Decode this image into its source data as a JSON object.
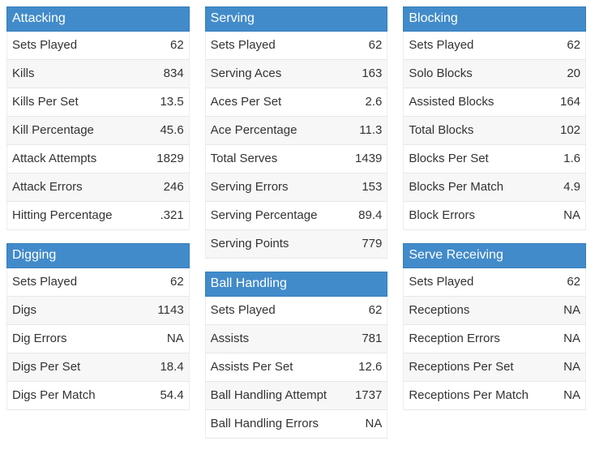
{
  "theme": {
    "header_bg": "#428bca",
    "header_border": "#357ebd",
    "header_text": "#ffffff",
    "row_stripe_bg": "#f7f7f7",
    "row_border": "#e7e7e7",
    "body_bg": "#ffffff",
    "text_color": "#333333"
  },
  "tables": {
    "attacking": {
      "title": "Attacking",
      "rows": [
        [
          "Sets Played",
          "62"
        ],
        [
          "Kills",
          "834"
        ],
        [
          "Kills Per Set",
          "13.5"
        ],
        [
          "Kill Percentage",
          "45.6"
        ],
        [
          "Attack Attempts",
          "1829"
        ],
        [
          "Attack Errors",
          "246"
        ],
        [
          "Hitting Percentage",
          ".321"
        ]
      ]
    },
    "serving": {
      "title": "Serving",
      "rows": [
        [
          "Sets Played",
          "62"
        ],
        [
          "Serving Aces",
          "163"
        ],
        [
          "Aces Per Set",
          "2.6"
        ],
        [
          "Ace Percentage",
          "11.3"
        ],
        [
          "Total Serves",
          "1439"
        ],
        [
          "Serving Errors",
          "153"
        ],
        [
          "Serving Percentage",
          "89.4"
        ],
        [
          "Serving Points",
          "779"
        ]
      ]
    },
    "blocking": {
      "title": "Blocking",
      "rows": [
        [
          "Sets Played",
          "62"
        ],
        [
          "Solo Blocks",
          "20"
        ],
        [
          "Assisted Blocks",
          "164"
        ],
        [
          "Total Blocks",
          "102"
        ],
        [
          "Blocks Per Set",
          "1.6"
        ],
        [
          "Blocks Per Match",
          "4.9"
        ],
        [
          "Block Errors",
          "NA"
        ]
      ]
    },
    "digging": {
      "title": "Digging",
      "rows": [
        [
          "Sets Played",
          "62"
        ],
        [
          "Digs",
          "1143"
        ],
        [
          "Dig Errors",
          "NA"
        ],
        [
          "Digs Per Set",
          "18.4"
        ],
        [
          "Digs Per Match",
          "54.4"
        ]
      ]
    },
    "ball_handling": {
      "title": "Ball Handling",
      "rows": [
        [
          "Sets Played",
          "62"
        ],
        [
          "Assists",
          "781"
        ],
        [
          "Assists Per Set",
          "12.6"
        ],
        [
          "Ball Handling Attempt",
          "1737"
        ],
        [
          "Ball Handling Errors",
          "NA"
        ]
      ]
    },
    "serve_receiving": {
      "title": "Serve Receiving",
      "rows": [
        [
          "Sets Played",
          "62"
        ],
        [
          "Receptions",
          "NA"
        ],
        [
          "Reception Errors",
          "NA"
        ],
        [
          "Receptions Per Set",
          "NA"
        ],
        [
          "Receptions Per Match",
          "NA"
        ]
      ]
    }
  }
}
